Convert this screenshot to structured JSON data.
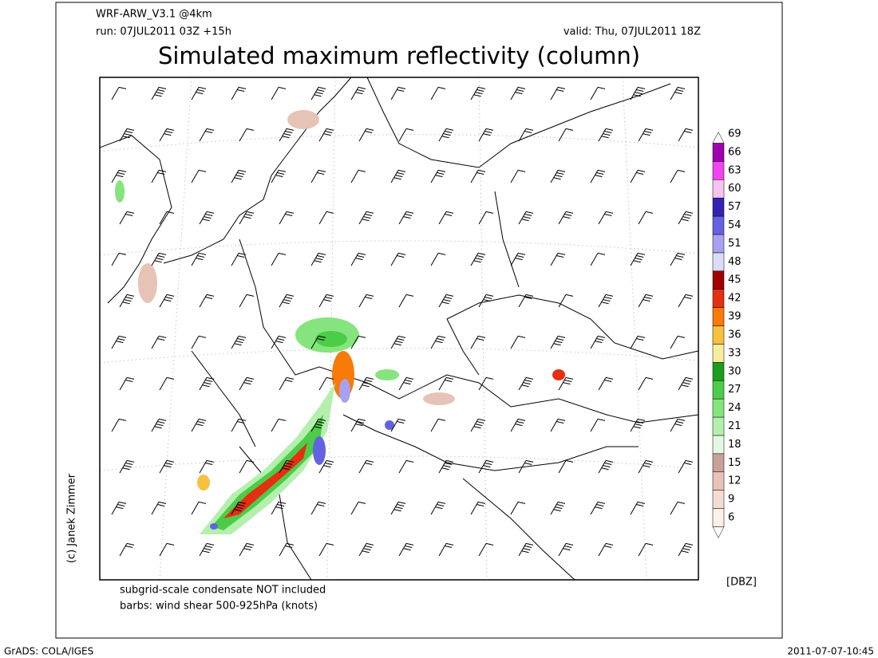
{
  "header": {
    "model": "WRF-ARW_V3.1 @4km",
    "run": "run: 07JUL2011 03Z +15h",
    "valid": "valid: Thu, 07JUL2011 18Z",
    "title": "Simulated maximum reflectivity (column)"
  },
  "colorbar": {
    "unit": "[DBZ]",
    "levels": [
      6,
      9,
      12,
      15,
      18,
      21,
      24,
      27,
      30,
      33,
      36,
      39,
      42,
      45,
      48,
      51,
      54,
      57,
      60,
      63,
      66,
      69
    ],
    "colors": [
      "#fdf0e8",
      "#f3ddd2",
      "#e6c3b6",
      "#c8a296",
      "#e4f7e2",
      "#b4efae",
      "#86e47e",
      "#4ccc48",
      "#1c9e1c",
      "#f6ee9e",
      "#f8c040",
      "#f87a08",
      "#e43010",
      "#a00000",
      "#dcdcf8",
      "#a8a0f0",
      "#6462e0",
      "#3422b0",
      "#f6c2f0",
      "#f044f0",
      "#a000b0"
    ]
  },
  "notes": [
    "subgrid-scale condensate NOT included",
    "barbs: wind shear 500-925hPa (knots)"
  ],
  "credit": "(c) Janek Zimmer",
  "footer": {
    "software": "GrADS: COLA/IGES",
    "timestamp": "2011-07-07-10:45"
  }
}
